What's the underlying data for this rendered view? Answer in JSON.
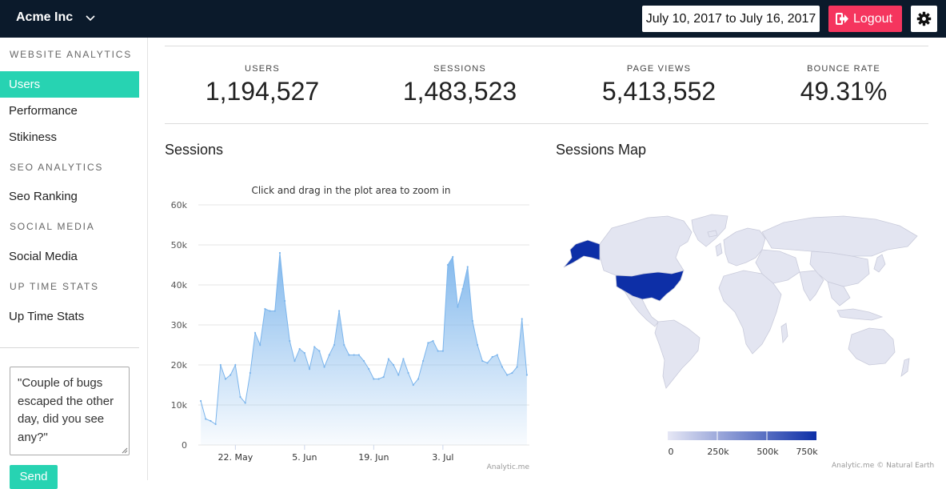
{
  "header": {
    "brand": "Acme Inc",
    "date_range": "July 10, 2017 to July 16, 2017",
    "logout_label": "Logout"
  },
  "sidebar": {
    "sections": [
      {
        "heading": "WEBSITE ANALYTICS",
        "items": [
          {
            "label": "Users",
            "active": true
          },
          {
            "label": "Performance"
          },
          {
            "label": "Stikiness"
          }
        ]
      },
      {
        "heading": "SEO ANALYTICS",
        "items": [
          {
            "label": "Seo Ranking"
          }
        ]
      },
      {
        "heading": "SOCIAL MEDIA",
        "items": [
          {
            "label": "Social Media"
          }
        ]
      },
      {
        "heading": "UP TIME STATS",
        "items": [
          {
            "label": "Up Time Stats"
          }
        ]
      }
    ],
    "feedback_text": "\"Couple of bugs escaped the other day, did you see any?\"",
    "send_label": "Send"
  },
  "stats": [
    {
      "label": "USERS",
      "value": "1,194,527"
    },
    {
      "label": "SESSIONS",
      "value": "1,483,523"
    },
    {
      "label": "PAGE VIEWS",
      "value": "5,413,552"
    },
    {
      "label": "BOUNCE RATE",
      "value": "49.31%"
    }
  ],
  "sessions_chart": {
    "section_title": "Sessions",
    "subtitle": "Click and drag in the plot area to zoom in",
    "credit": "Analytic.me",
    "color": "#7cb5ec"
  },
  "chart_data": {
    "type": "area",
    "title": "",
    "subtitle": "Click and drag in the plot area to zoom in",
    "xlabel": "",
    "ylabel": "",
    "ylim": [
      0,
      60000
    ],
    "yticks": [
      0,
      10000,
      20000,
      30000,
      40000,
      50000,
      60000
    ],
    "ytick_labels": [
      "0",
      "10k",
      "20k",
      "30k",
      "40k",
      "50k",
      "60k"
    ],
    "x_start": "2017-05-15",
    "xticks": [
      "22. May",
      "5. Jun",
      "19. Jun",
      "3. Jul"
    ],
    "xtick_dates": [
      "2017-05-22",
      "2017-06-05",
      "2017-06-19",
      "2017-07-03"
    ],
    "series": [
      {
        "values": [
          11000,
          6500,
          6000,
          5200,
          20000,
          16500,
          17500,
          20000,
          12000,
          10500,
          18000,
          28000,
          25000,
          34000,
          33500,
          33500,
          48000,
          36000,
          26000,
          21000,
          24000,
          23000,
          19000,
          24500,
          23500,
          19500,
          22500,
          25000,
          33500,
          25000,
          22500,
          22500,
          22500,
          21000,
          19000,
          16500,
          16500,
          17000,
          21500,
          20000,
          17500,
          21500,
          18000,
          15000,
          16500,
          21000,
          25500,
          26000,
          23500,
          23500,
          45000,
          47000,
          34500,
          39000,
          44500,
          31000,
          25000,
          21000,
          20500,
          22000,
          22500,
          19500,
          17500,
          18000,
          19500,
          31500,
          17500
        ]
      }
    ]
  },
  "sessions_map": {
    "section_title": "Sessions Map",
    "credit": "Analytic.me © Natural Earth",
    "legend_ticks": [
      "0",
      "250k",
      "500k",
      "750k"
    ],
    "color_min": "#e6e7f5",
    "color_max": "#0d2fa7",
    "base_color": "#e3e5f1"
  }
}
